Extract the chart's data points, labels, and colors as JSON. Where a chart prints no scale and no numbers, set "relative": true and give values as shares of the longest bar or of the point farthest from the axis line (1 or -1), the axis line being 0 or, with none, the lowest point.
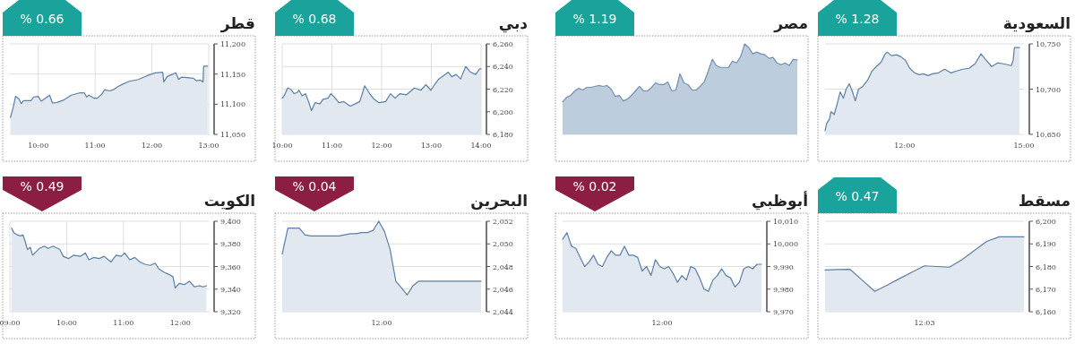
{
  "chart_data": [
    {
      "type": "area",
      "title": "السعودية",
      "annotations": [
        "% 1.28"
      ],
      "grid": "y",
      "xlim": [
        10,
        15
      ],
      "xticks": [
        {
          "value": 12,
          "label": "12:00"
        },
        {
          "value": 15,
          "label": "15:00"
        }
      ],
      "ylim": [
        10650,
        10750
      ],
      "yticks": [
        {
          "value": 10650,
          "label": "10,650"
        },
        {
          "value": 10700,
          "label": "10,700"
        },
        {
          "value": 10750,
          "label": "10,750"
        }
      ],
      "x": [
        10.0,
        10.04,
        10.11,
        10.15,
        10.23,
        10.3,
        10.38,
        10.46,
        10.53,
        10.61,
        10.69,
        10.76,
        10.84,
        10.95,
        11.07,
        11.18,
        11.29,
        11.41,
        11.5,
        11.56,
        11.67,
        11.79,
        11.9,
        12.02,
        12.13,
        12.25,
        12.36,
        12.47,
        12.59,
        12.7,
        12.85,
        13.01,
        13.16,
        13.31,
        13.46,
        13.62,
        13.77,
        13.92,
        14.03,
        14.19,
        14.34,
        14.49,
        14.68,
        14.73,
        14.76,
        14.89
      ],
      "series": [
        {
          "color": "#5b7fa6",
          "values": [
            10654,
            10662,
            10667,
            10675,
            10672,
            10683,
            10697,
            10690,
            10700,
            10706,
            10697,
            10687,
            10700,
            10703,
            10710,
            10720,
            10725,
            10730,
            10738,
            10741,
            10737,
            10738,
            10736,
            10732,
            10723,
            10718,
            10716,
            10717,
            10715,
            10717,
            10718,
            10722,
            10718,
            10720,
            10722,
            10723,
            10728,
            10739,
            10733,
            10725,
            10729,
            10728,
            10726,
            10732,
            10746,
            10746
          ]
        }
      ]
    },
    {
      "type": "area",
      "title": "مصر",
      "annotations": [
        "% 1.19"
      ],
      "relative": true,
      "categories": [
        null,
        null,
        null,
        null,
        null,
        null,
        null,
        null,
        null,
        null,
        null,
        null,
        null,
        null,
        null,
        null,
        null,
        null,
        null,
        null,
        null,
        null,
        null,
        null,
        null,
        null,
        null,
        null,
        null,
        null,
        null,
        null,
        null,
        null,
        null,
        null,
        null,
        null,
        null,
        null,
        null,
        null,
        null,
        null,
        null,
        null,
        null,
        null,
        null,
        null,
        null,
        null,
        null,
        null,
        null,
        null,
        null,
        null,
        null
      ],
      "series": [
        {
          "color": "#6f8fb3",
          "values": [
            0.36,
            0.41,
            0.43,
            0.48,
            0.51,
            0.49,
            0.52,
            0.52,
            0.53,
            0.54,
            0.53,
            0.54,
            0.5,
            0.42,
            0.43,
            0.37,
            0.39,
            0.43,
            0.48,
            0.53,
            0.48,
            0.48,
            0.52,
            0.57,
            0.55,
            0.55,
            0.58,
            0.48,
            0.49,
            0.67,
            0.57,
            0.55,
            0.49,
            0.49,
            0.53,
            0.58,
            0.7,
            0.83,
            0.76,
            0.74,
            0.74,
            0.74,
            0.81,
            0.79,
            0.86,
            1.0,
            0.96,
            0.89,
            0.91,
            0.89,
            0.88,
            0.84,
            0.85,
            0.79,
            0.77,
            0.79,
            0.76,
            0.83,
            0.82
          ]
        }
      ]
    },
    {
      "type": "area",
      "title": "دبي",
      "annotations": [
        "% 0.68"
      ],
      "grid": true,
      "xlim": [
        10,
        14
      ],
      "xticks": [
        {
          "value": 10,
          "label": "10:00"
        },
        {
          "value": 11,
          "label": "11:00"
        },
        {
          "value": 12,
          "label": "12:00"
        },
        {
          "value": 13,
          "label": "13:00"
        },
        {
          "value": 14,
          "label": "14:00"
        }
      ],
      "ylim": [
        6180,
        6260
      ],
      "yticks": [
        {
          "value": 6180,
          "label": "6,180"
        },
        {
          "value": 6200,
          "label": "6,200"
        },
        {
          "value": 6220,
          "label": "6,220"
        },
        {
          "value": 6240,
          "label": "6,240"
        },
        {
          "value": 6260,
          "label": "6,260"
        }
      ],
      "x": [
        10.0,
        10.05,
        10.11,
        10.17,
        10.24,
        10.3,
        10.34,
        10.4,
        10.47,
        10.53,
        10.59,
        10.66,
        10.76,
        10.82,
        10.92,
        10.98,
        11.05,
        11.14,
        11.24,
        11.37,
        11.47,
        11.56,
        11.66,
        11.76,
        11.85,
        11.95,
        12.08,
        12.18,
        12.27,
        12.37,
        12.5,
        12.66,
        12.79,
        12.89,
        12.99,
        13.05,
        13.15,
        13.25,
        13.34,
        13.41,
        13.5,
        13.59,
        13.69,
        13.79,
        13.89,
        13.97,
        14.0
      ],
      "series": [
        {
          "color": "#5b7fa6",
          "values": [
            6212,
            6215,
            6221,
            6220,
            6216,
            6217,
            6219,
            6214,
            6216,
            6209,
            6201,
            6208,
            6207,
            6211,
            6212,
            6216,
            6213,
            6208,
            6209,
            6205,
            6207,
            6209,
            6223,
            6216,
            6211,
            6208,
            6209,
            6216,
            6212,
            6216,
            6215,
            6221,
            6219,
            6224,
            6219,
            6223,
            6229,
            6232,
            6235,
            6231,
            6233,
            6229,
            6240,
            6235,
            6233,
            6238,
            6238
          ]
        }
      ]
    },
    {
      "type": "area",
      "title": "قطر",
      "annotations": [
        "% 0.66"
      ],
      "grid": true,
      "xlim": [
        9.5,
        13
      ],
      "xticks": [
        {
          "value": 10,
          "label": "10:00"
        },
        {
          "value": 11,
          "label": "11:00"
        },
        {
          "value": 12,
          "label": "12:00"
        },
        {
          "value": 13,
          "label": "13:00"
        }
      ],
      "ylim": [
        11050,
        11200
      ],
      "yticks": [
        {
          "value": 11050,
          "label": "11,050"
        },
        {
          "value": 11100,
          "label": "11,100"
        },
        {
          "value": 11150,
          "label": "11,150"
        },
        {
          "value": 11200,
          "label": "11,200"
        }
      ],
      "x": [
        9.51,
        9.56,
        9.6,
        9.66,
        9.7,
        9.74,
        9.87,
        9.92,
        10.0,
        10.05,
        10.13,
        10.2,
        10.25,
        10.33,
        10.45,
        10.58,
        10.74,
        10.81,
        10.85,
        10.89,
        10.98,
        11.04,
        11.12,
        11.17,
        11.25,
        11.32,
        11.4,
        11.48,
        11.6,
        11.76,
        11.86,
        11.96,
        12.06,
        12.19,
        12.21,
        12.27,
        12.37,
        12.42,
        12.47,
        12.52,
        12.62,
        12.73,
        12.78,
        12.85,
        12.9,
        12.91,
        12.98
      ],
      "series": [
        {
          "color": "#5b7fa6",
          "values": [
            11078,
            11095,
            11113,
            11109,
            11101,
            11106,
            11106,
            11112,
            11113,
            11105,
            11110,
            11115,
            11102,
            11103,
            11107,
            11115,
            11119,
            11119,
            11112,
            11115,
            11110,
            11110,
            11117,
            11124,
            11122,
            11124,
            11129,
            11133,
            11138,
            11141,
            11145,
            11149,
            11152,
            11153,
            11137,
            11146,
            11150,
            11152,
            11141,
            11145,
            11144,
            11143,
            11139,
            11140,
            11137,
            11163,
            11163
          ]
        }
      ]
    },
    {
      "type": "area",
      "title": "مسقط",
      "annotations": [
        "% 0.47",
        "12:03"
      ],
      "grid": true,
      "categories": [
        null,
        null,
        null,
        null,
        null,
        null,
        null,
        null,
        null,
        null,
        null,
        null,
        null,
        null,
        null,
        null,
        null
      ],
      "ylim": [
        6160,
        6200
      ],
      "yticks": [
        {
          "value": 6160,
          "label": "6,160"
        },
        {
          "value": 6170,
          "label": "6,170"
        },
        {
          "value": 6180,
          "label": "6,180"
        },
        {
          "value": 6190,
          "label": "6,190"
        },
        {
          "value": 6200,
          "label": "6,200"
        }
      ],
      "series": [
        {
          "color": "#5b7fa6",
          "values": [
            6178.5,
            6178.7,
            6178.8,
            6173.9,
            6169.0,
            6171.8,
            6174.7,
            6177.5,
            6180.3,
            6180.0,
            6179.7,
            6183.0,
            6187.0,
            6191.1,
            6193.1,
            6193.1,
            6193.1
          ]
        }
      ]
    },
    {
      "type": "area",
      "title": "أبوظبي",
      "annotations": [
        "% 0.02",
        "12:00"
      ],
      "grid": true,
      "categories": [
        null,
        null,
        null,
        null,
        null,
        null,
        null,
        null,
        null,
        null,
        null,
        null,
        null,
        null,
        null,
        null,
        null,
        null,
        null,
        null,
        null,
        null,
        null,
        null,
        null,
        null,
        null,
        null,
        null,
        null,
        null,
        null,
        null,
        null,
        null,
        null,
        null,
        null,
        null,
        null,
        null,
        null,
        null,
        null,
        null,
        null
      ],
      "ylim": [
        9970,
        10010
      ],
      "yticks": [
        {
          "value": 9970,
          "label": "9,970"
        },
        {
          "value": 9980,
          "label": "9,980"
        },
        {
          "value": 9990,
          "label": "9,990"
        },
        {
          "value": 10000,
          "label": "10,000"
        },
        {
          "value": 10010,
          "label": "10,010"
        }
      ],
      "series": [
        {
          "color": "#5b7fa6",
          "values": [
            10002,
            10005,
            9999,
            9998,
            9994,
            9990,
            9992,
            9995,
            9991,
            9990,
            9994,
            9997,
            9995,
            9995,
            9999,
            9995,
            9995,
            9994,
            9988,
            9990,
            9986,
            9993,
            9990,
            9989,
            9990,
            9987,
            9983,
            9986,
            9984,
            9990,
            9989,
            9985,
            9980,
            9979,
            9984,
            9986,
            9989,
            9986,
            9985,
            9981,
            9983,
            9989,
            9990,
            9989,
            9991,
            9991
          ]
        }
      ]
    },
    {
      "type": "area",
      "title": "البحرين",
      "annotations": [
        "% 0.04",
        "12:00"
      ],
      "grid": true,
      "categories": [
        null,
        null,
        null,
        null,
        null,
        null,
        null,
        null,
        null,
        null,
        null,
        null,
        null,
        null,
        null,
        null,
        null,
        null,
        null,
        null,
        null,
        null,
        null,
        null,
        null,
        null,
        null,
        null,
        null,
        null,
        null,
        null,
        null,
        null,
        null,
        null
      ],
      "ylim": [
        2044,
        2052
      ],
      "yticks": [
        {
          "value": 2044,
          "label": "2,044"
        },
        {
          "value": 2046,
          "label": "2,046"
        },
        {
          "value": 2048,
          "label": "2,048"
        },
        {
          "value": 2050,
          "label": "2,050"
        },
        {
          "value": 2052,
          "label": "2,052"
        }
      ],
      "series": [
        {
          "color": "#5b7fa6",
          "values": [
            2049.1,
            2051.4,
            2051.4,
            2051.4,
            2050.8,
            2050.7,
            2050.7,
            2050.7,
            2050.7,
            2050.7,
            2050.7,
            2050.8,
            2050.9,
            2050.9,
            2051.0,
            2051.0,
            2051.2,
            2052.0,
            2051.1,
            2049.5,
            2046.7,
            2046.1,
            2045.5,
            2046.3,
            2046.7,
            2046.7,
            2046.7,
            2046.7,
            2046.7,
            2046.7,
            2046.7,
            2046.7,
            2046.7,
            2046.7,
            2046.7,
            2046.7
          ]
        }
      ]
    },
    {
      "type": "area",
      "title": "الكويت",
      "annotations": [
        "% 0.49"
      ],
      "grid": true,
      "xlim": [
        9,
        12.5
      ],
      "xticks": [
        {
          "value": 9,
          "label": "09:00"
        },
        {
          "value": 10,
          "label": "10:00"
        },
        {
          "value": 11,
          "label": "11:00"
        },
        {
          "value": 12,
          "label": "12:00"
        }
      ],
      "ylim": [
        9320,
        9400
      ],
      "yticks": [
        {
          "value": 9320,
          "label": "9,320"
        },
        {
          "value": 9340,
          "label": "9,340"
        },
        {
          "value": 9360,
          "label": "9,360"
        },
        {
          "value": 9380,
          "label": "9,380"
        },
        {
          "value": 9400,
          "label": "9,400"
        }
      ],
      "x": [
        9.03,
        9.07,
        9.13,
        9.19,
        9.23,
        9.27,
        9.31,
        9.36,
        9.4,
        9.46,
        9.52,
        9.61,
        9.67,
        9.76,
        9.88,
        9.94,
        10.03,
        10.12,
        10.24,
        10.33,
        10.39,
        10.48,
        10.57,
        10.66,
        10.78,
        10.87,
        10.96,
        11.02,
        11.11,
        11.2,
        11.29,
        11.38,
        11.47,
        11.56,
        11.62,
        11.71,
        11.8,
        11.87,
        11.91,
        11.98,
        12.07,
        12.16,
        12.25,
        12.34,
        12.4,
        12.46
      ],
      "series": [
        {
          "color": "#5b7fa6",
          "values": [
            9394,
            9390,
            9388,
            9387,
            9388,
            9382,
            9375,
            9377,
            9370,
            9373,
            9376,
            9378,
            9376,
            9378,
            9375,
            9369,
            9367,
            9370,
            9369,
            9372,
            9366,
            9368,
            9367,
            9369,
            9364,
            9370,
            9369,
            9372,
            9366,
            9368,
            9364,
            9362,
            9361,
            9363,
            9358,
            9355,
            9353,
            9351,
            9341,
            9345,
            9344,
            9347,
            9342,
            9343,
            9342,
            9343
          ]
        }
      ]
    }
  ]
}
